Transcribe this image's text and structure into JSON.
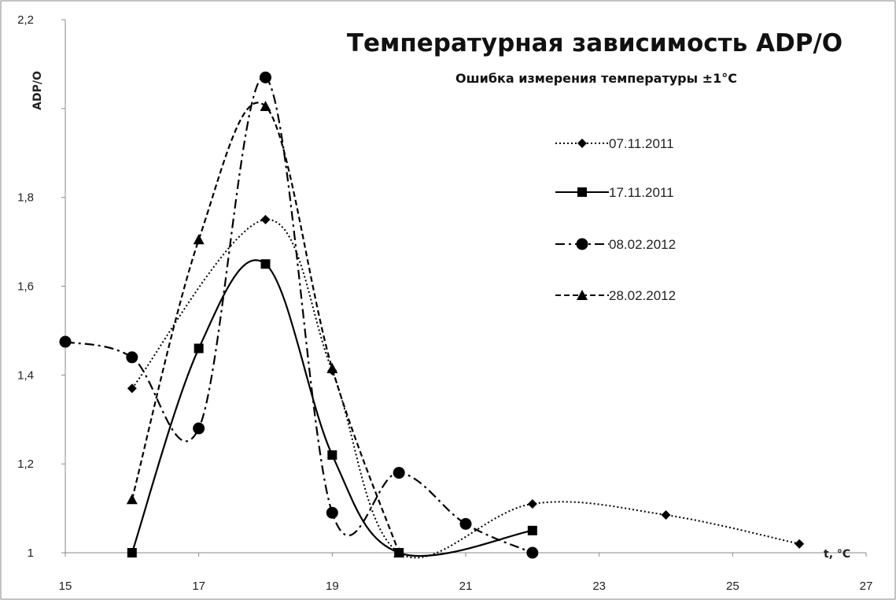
{
  "chart_data": {
    "type": "line",
    "title": "Температурная зависимость ADP/O",
    "subtitle": "Ошибка измерения температуры  ±1°С",
    "xlabel": "t, °C",
    "ylabel": "ADP/O",
    "xlim": [
      15,
      27
    ],
    "ylim": [
      1,
      2.2
    ],
    "xticks": [
      "15",
      "17",
      "19",
      "21",
      "23",
      "25",
      "27"
    ],
    "yticks": [
      "1",
      "1,2",
      "1,4",
      "1,6",
      "1,8",
      "",
      "2,2"
    ],
    "legend_position": "right",
    "grid": false,
    "series": [
      {
        "name": "07.11.2011",
        "marker": "diamond",
        "dash": "dotted",
        "x": [
          16,
          18,
          19,
          20,
          22,
          24,
          26
        ],
        "y": [
          1.37,
          1.75,
          1.41,
          1.0,
          1.11,
          1.085,
          1.02
        ]
      },
      {
        "name": "17.11.2011",
        "marker": "square",
        "dash": "solid",
        "x": [
          16,
          17,
          18,
          19,
          20,
          22
        ],
        "y": [
          1.0,
          1.46,
          1.65,
          1.22,
          1.0,
          1.05
        ]
      },
      {
        "name": "08.02.2012",
        "marker": "circle",
        "dash": "dashdot",
        "x": [
          15,
          16,
          17,
          18,
          19,
          20,
          21,
          22
        ],
        "y": [
          1.475,
          1.44,
          1.28,
          2.07,
          1.09,
          1.18,
          1.065,
          1.0
        ]
      },
      {
        "name": "28.02.2012",
        "marker": "triangle",
        "dash": "dashed",
        "x": [
          16,
          17,
          18,
          19,
          20
        ],
        "y": [
          1.12,
          1.705,
          2.005,
          1.415,
          1.0
        ]
      }
    ]
  }
}
